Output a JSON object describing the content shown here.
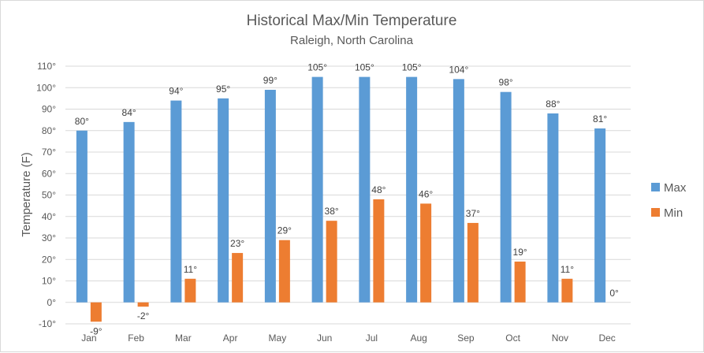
{
  "chart_data": {
    "type": "bar",
    "title": "Historical Max/Min Temperature",
    "subtitle": "Raleigh, North Carolina",
    "ylabel": "Temperature (F)",
    "xlabel": "",
    "categories": [
      "Jan",
      "Feb",
      "Mar",
      "Apr",
      "May",
      "Jun",
      "Jul",
      "Aug",
      "Sep",
      "Oct",
      "Nov",
      "Dec"
    ],
    "series": [
      {
        "name": "Max",
        "color": "#5b9bd5",
        "values": [
          80,
          84,
          94,
          95,
          99,
          105,
          105,
          105,
          104,
          98,
          88,
          81
        ],
        "labels": [
          "80°",
          "84°",
          "94°",
          "95°",
          "99°",
          "105°",
          "105°",
          "105°",
          "104°",
          "98°",
          "88°",
          "81°"
        ]
      },
      {
        "name": "Min",
        "color": "#ed7d31",
        "values": [
          -9,
          -2,
          11,
          23,
          29,
          38,
          48,
          46,
          37,
          19,
          11,
          0
        ],
        "labels": [
          "-9°",
          "-2°",
          "11°",
          "23°",
          "29°",
          "38°",
          "48°",
          "46°",
          "37°",
          "19°",
          "11°",
          "0°"
        ]
      }
    ],
    "ylim": [
      -10,
      110
    ],
    "yticks": [
      -10,
      0,
      10,
      20,
      30,
      40,
      50,
      60,
      70,
      80,
      90,
      100,
      110
    ],
    "ytick_labels": [
      "-10°",
      "0°",
      "10°",
      "20°",
      "30°",
      "40°",
      "50°",
      "60°",
      "70°",
      "80°",
      "90°",
      "100°",
      "110°"
    ],
    "grid": true,
    "legend": "right"
  }
}
